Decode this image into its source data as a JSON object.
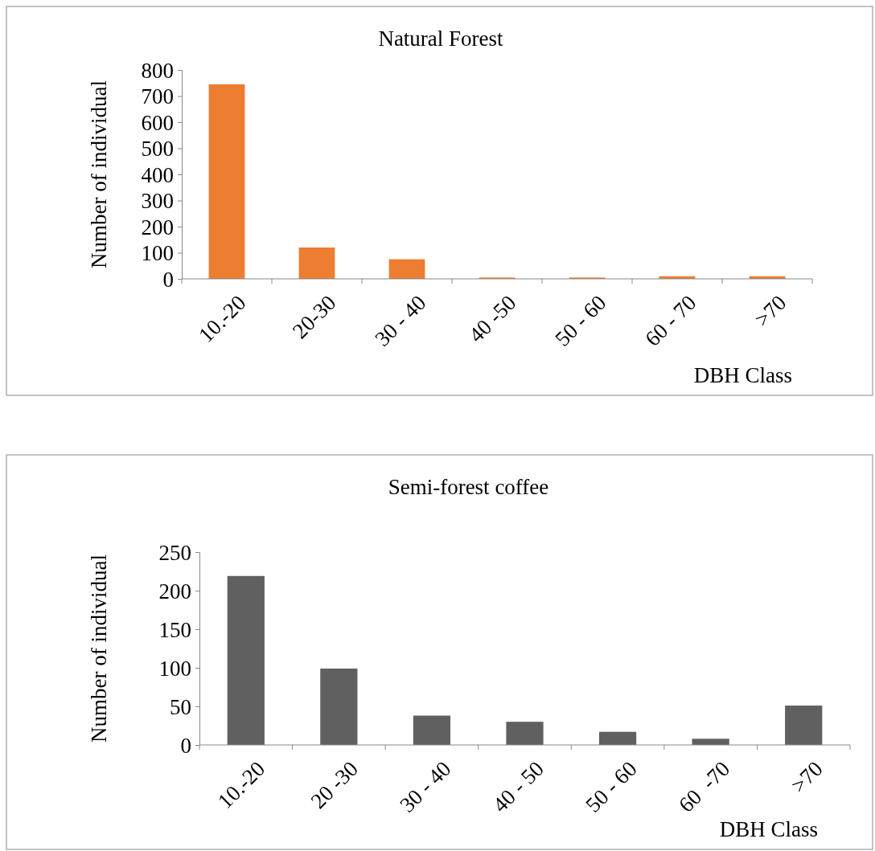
{
  "chart_data": [
    {
      "type": "bar",
      "title": "Natural Forest",
      "ylabel": "Number of individual",
      "xlabel": "DBH Class",
      "categories": [
        "10.-20",
        "20-30",
        "30 - 40",
        "40 -50",
        "50 - 60",
        "60 - 70",
        ">70"
      ],
      "values": [
        745,
        120,
        75,
        5,
        5,
        10,
        10
      ],
      "color": "#ed7d31",
      "ylim": [
        0,
        800
      ],
      "yticks": [
        0,
        100,
        200,
        300,
        400,
        500,
        600,
        700,
        800
      ],
      "grid": false
    },
    {
      "type": "bar",
      "title": "Semi-forest coffee",
      "ylabel": "Number of individual",
      "xlabel": "DBH Class",
      "categories": [
        "10.-20",
        "20 -30",
        "30 - 40",
        "40 - 50",
        "50 - 60",
        "60  -70",
        ">70"
      ],
      "values": [
        219,
        99,
        38,
        30,
        17,
        8,
        51
      ],
      "color": "#606060",
      "ylim": [
        0,
        250
      ],
      "yticks": [
        0,
        50,
        100,
        150,
        200,
        250
      ],
      "grid": false
    }
  ]
}
